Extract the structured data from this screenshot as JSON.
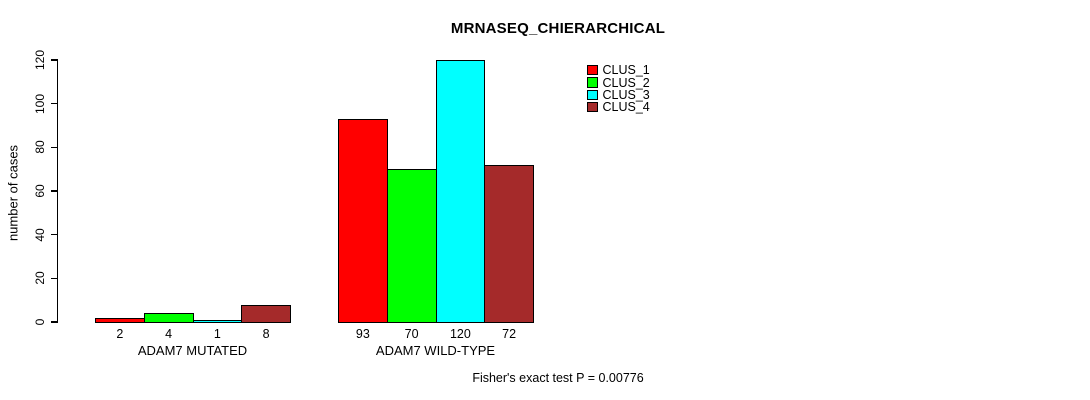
{
  "chart_data": {
    "type": "bar",
    "title": "MRNASEQ_CHIERARCHICAL",
    "ylabel": "number of cases",
    "xlabel": "",
    "categories": [
      "ADAM7 MUTATED",
      "ADAM7 WILD-TYPE"
    ],
    "series": [
      {
        "name": "CLUS_1",
        "color": "#ff0000",
        "values": [
          2,
          93
        ]
      },
      {
        "name": "CLUS_2",
        "color": "#00ff00",
        "values": [
          4,
          70
        ]
      },
      {
        "name": "CLUS_3",
        "color": "#00ffff",
        "values": [
          1,
          120
        ]
      },
      {
        "name": "CLUS_4",
        "color": "#a52a2a",
        "values": [
          8,
          72
        ]
      }
    ],
    "ylim": [
      0,
      120
    ],
    "yticks": [
      0,
      20,
      40,
      60,
      80,
      100,
      120
    ],
    "bar_value_labels_shown": true,
    "legend_position": "top-right",
    "grid": false,
    "background_color": "#ffffff",
    "axis_color": "#000000"
  },
  "annotation": "Fisher's exact test P = 0.00776"
}
